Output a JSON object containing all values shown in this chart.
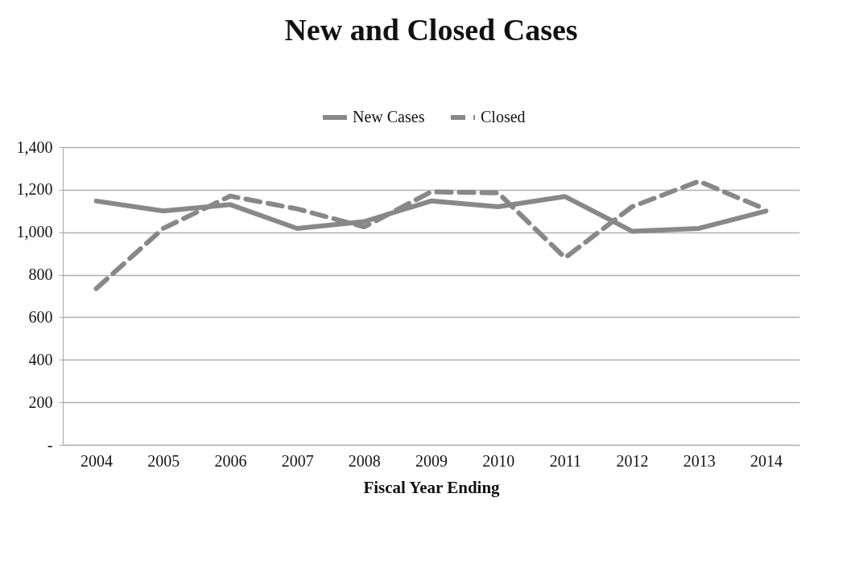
{
  "chart_data": {
    "type": "line",
    "title": "New and Closed Cases",
    "xlabel": "Fiscal Year Ending",
    "categories": [
      "2004",
      "2005",
      "2006",
      "2007",
      "2008",
      "2009",
      "2010",
      "2011",
      "2012",
      "2013",
      "2014"
    ],
    "series": [
      {
        "name": "New Cases",
        "color": "#888888",
        "line_style": "solid",
        "values": [
          1147,
          1100,
          1130,
          1018,
          1050,
          1147,
          1120,
          1168,
          1005,
          1018,
          1100
        ]
      },
      {
        "name": "Closed",
        "color": "#888888",
        "line_style": "dashed",
        "values": [
          735,
          1018,
          1170,
          1110,
          1025,
          1190,
          1185,
          880,
          1120,
          1240,
          1107
        ]
      }
    ],
    "ylim": [
      0,
      1400
    ],
    "yticks": [
      {
        "value": 0,
        "label": "-"
      },
      200,
      400,
      600,
      800,
      {
        "value": 1000,
        "label": "1,000"
      },
      {
        "value": 1200,
        "label": "1,200"
      },
      {
        "value": 1400,
        "label": "1,400"
      }
    ],
    "grid": "y",
    "legend": "top",
    "marker": "none"
  }
}
